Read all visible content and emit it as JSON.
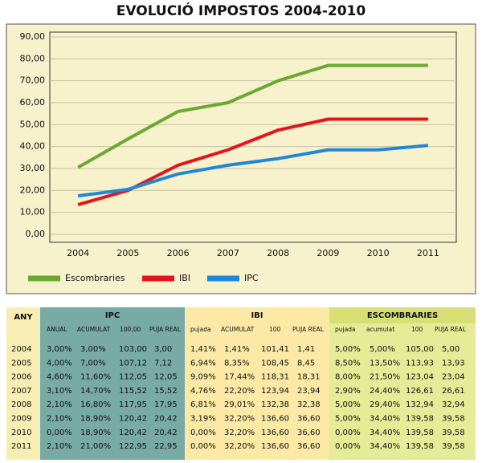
{
  "chart_data": {
    "type": "line",
    "title": "EVOLUCIÓ IMPOSTOS 2004-2010",
    "categories": [
      "2004",
      "2005",
      "2006",
      "2007",
      "2008",
      "2009",
      "2010",
      "2011"
    ],
    "series": [
      {
        "name": "Escombraries",
        "color": "#6aa832",
        "values": [
          30.5,
          43.5,
          56,
          60,
          70,
          77,
          77,
          77
        ]
      },
      {
        "name": "IBI",
        "color": "#e3141b",
        "values": [
          13.5,
          20,
          31.5,
          38.5,
          47.5,
          52.5,
          52.5,
          52.5
        ]
      },
      {
        "name": "IPC",
        "color": "#1e88d6",
        "values": [
          17.5,
          20.5,
          27.5,
          31.5,
          34.5,
          38.5,
          38.5,
          40.5
        ]
      }
    ],
    "ylim": [
      0,
      90
    ],
    "yticks": [
      {
        "value": 0,
        "label": "0,00"
      },
      {
        "value": 10,
        "label": "10,00"
      },
      {
        "value": 20,
        "label": "20,00"
      },
      {
        "value": 30,
        "label": "30,00"
      },
      {
        "value": 40,
        "label": "40,00"
      },
      {
        "value": 50,
        "label": "50,00"
      },
      {
        "value": 60,
        "label": "60,00"
      },
      {
        "value": 70,
        "label": "70,00"
      },
      {
        "value": 80,
        "label": "80,00"
      },
      {
        "value": 90,
        "label": "90,00"
      }
    ],
    "grid": true,
    "legend": "bottom"
  },
  "table": {
    "header": [
      "ANY",
      "IPC",
      "IBI",
      "ESCOMBRARIES"
    ],
    "subheader": [
      "ANUAL",
      "ACUMULAT",
      "100,00",
      "PUJA REAL",
      "pujada",
      "ACUMULAT",
      "100",
      "PUJA REAL",
      "pujada",
      "acumulat",
      "100",
      "PUJA REAL"
    ],
    "rows": [
      [
        "2004",
        "3,00%",
        "3,00%",
        "103,00",
        "3,00",
        "1,41%",
        "1,41%",
        "101,41",
        "1,41",
        "5,00%",
        "5,00%",
        "105,00",
        "5,00"
      ],
      [
        "2005",
        "4,00%",
        "7,00%",
        "107,12",
        "7,12",
        "6,94%",
        "8,35%",
        "108,45",
        "8,45",
        "8,50%",
        "13,50%",
        "113,93",
        "13,93"
      ],
      [
        "2006",
        "4,60%",
        "11,60%",
        "112,05",
        "12,05",
        "9,09%",
        "17,44%",
        "118,31",
        "18,31",
        "8,00%",
        "21,50%",
        "123,04",
        "23,04"
      ],
      [
        "2007",
        "3,10%",
        "14,70%",
        "115,52",
        "15,52",
        "4,76%",
        "22,20%",
        "123,94",
        "23,94",
        "2,90%",
        "24,40%",
        "126,61",
        "26,61"
      ],
      [
        "2008",
        "2,10%",
        "16,80%",
        "117,95",
        "17,95",
        "6,81%",
        "29,01%",
        "132,38",
        "32,38",
        "5,00%",
        "29,40%",
        "132,94",
        "32,94"
      ],
      [
        "2009",
        "2,10%",
        "18,90%",
        "120,42",
        "20,42",
        "3,19%",
        "32,20%",
        "136,60",
        "36,60",
        "5,00%",
        "34,40%",
        "139,58",
        "39,58"
      ],
      [
        "2010",
        "0,00%",
        "18,90%",
        "120,42",
        "20,42",
        "0,00%",
        "32,20%",
        "136,60",
        "36,60",
        "0,00%",
        "34,40%",
        "139,58",
        "39,58"
      ],
      [
        "2011",
        "2,10%",
        "21,00%",
        "122,95",
        "22,95",
        "0,00%",
        "32,20%",
        "136,60",
        "36,60",
        "0,00%",
        "34,40%",
        "139,58",
        "39,58"
      ]
    ]
  }
}
